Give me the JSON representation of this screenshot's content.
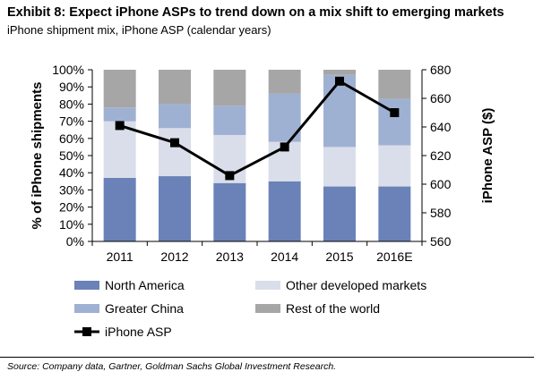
{
  "header": {
    "title": "Exhibit 8: Expect iPhone ASPs to trend down on a mix shift to emerging markets",
    "subtitle": "iPhone shipment mix, iPhone ASP (calendar years)"
  },
  "footer": {
    "source": "Source: Company data, Gartner, Goldman Sachs Global Investment Research."
  },
  "chart_data": {
    "type": "bar",
    "stacked": true,
    "categories": [
      "2011",
      "2012",
      "2013",
      "2014",
      "2015",
      "2016E"
    ],
    "ylabel": "% of iPhone shipments",
    "y2label": "iPhone ASP ($)",
    "ylim": [
      0,
      100
    ],
    "y2lim": [
      560,
      680
    ],
    "yticks": [
      "0%",
      "10%",
      "20%",
      "30%",
      "40%",
      "50%",
      "60%",
      "70%",
      "80%",
      "90%",
      "100%"
    ],
    "y2ticks": [
      560,
      580,
      600,
      620,
      640,
      660,
      680
    ],
    "grid": false,
    "legend_position": "bottom",
    "series": [
      {
        "name": "North America",
        "color": "#6a82b7",
        "values": [
          37,
          38,
          34,
          35,
          32,
          32
        ]
      },
      {
        "name": "Other developed markets",
        "color": "#d9deea",
        "values": [
          33,
          28,
          28,
          23,
          23,
          24
        ]
      },
      {
        "name": "Greater China",
        "color": "#9fb1d2",
        "values": [
          8,
          14,
          17,
          28,
          42,
          27
        ]
      },
      {
        "name": "Rest of the world",
        "color": "#a6a6a6",
        "values": [
          22,
          20,
          21,
          14,
          3,
          17
        ]
      }
    ],
    "line_series": {
      "name": "iPhone ASP",
      "color": "#000000",
      "axis": "right",
      "values": [
        641,
        629,
        606,
        626,
        672,
        650
      ]
    }
  }
}
